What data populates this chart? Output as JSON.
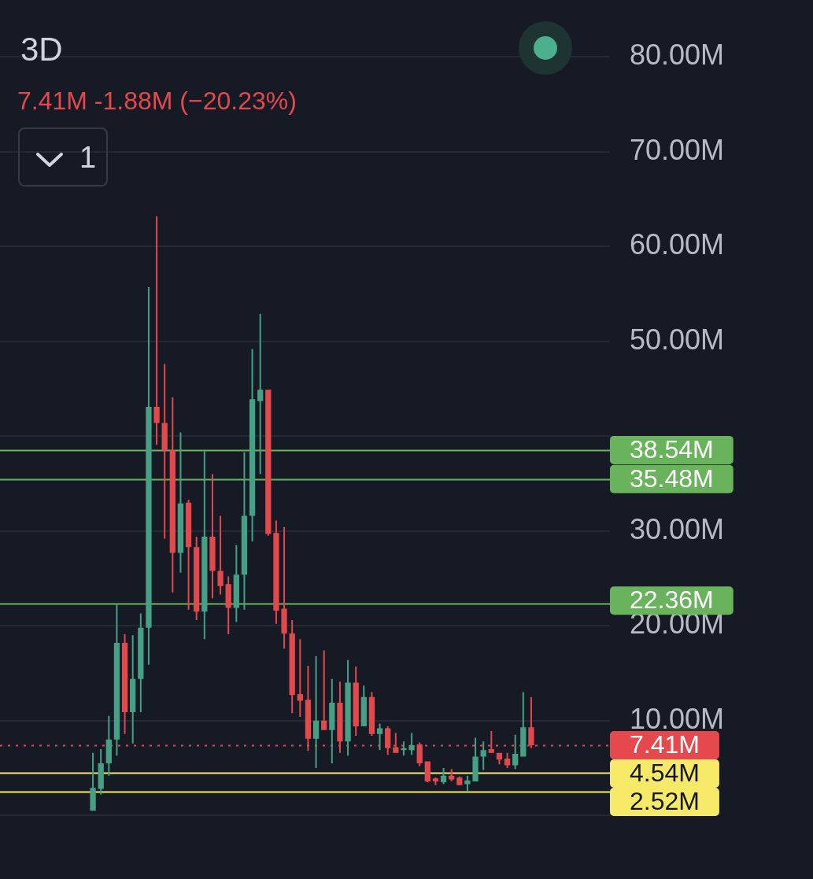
{
  "chart_data": {
    "type": "candlestick",
    "title": "3D",
    "subtitle": "7.41M -1.88M (−20.23%)",
    "annotations": [
      "1"
    ],
    "categories": [
      null,
      null,
      null,
      null,
      null,
      null,
      null,
      null,
      null,
      null,
      null,
      null,
      null,
      null,
      null,
      null,
      null,
      null,
      null,
      null,
      null,
      null,
      null,
      null,
      null,
      null,
      null,
      null,
      null,
      null,
      null,
      null,
      null,
      null,
      null,
      null,
      null,
      null,
      null,
      null,
      null,
      null,
      null,
      null,
      null,
      null,
      null,
      null,
      null,
      null,
      null,
      null,
      null,
      null,
      null,
      null
    ],
    "ohlc": [
      [
        0.5,
        6.6,
        0.5,
        2.9
      ],
      [
        2.8,
        7.0,
        2.2,
        5.5
      ],
      [
        5.5,
        10.5,
        4.2,
        8.0
      ],
      [
        8.0,
        22.3,
        6.3,
        18.2
      ],
      [
        18.2,
        19.1,
        8.6,
        10.9
      ],
      [
        10.9,
        19.0,
        7.6,
        14.4
      ],
      [
        14.4,
        21.3,
        10.9,
        19.8
      ],
      [
        19.8,
        55.7,
        15.9,
        43.1
      ],
      [
        43.1,
        63.2,
        39.1,
        41.4
      ],
      [
        41.4,
        47.6,
        29.2,
        38.5
      ],
      [
        38.5,
        44.1,
        23.5,
        27.7
      ],
      [
        27.7,
        40.4,
        25.6,
        32.9
      ],
      [
        33.0,
        33.3,
        21.7,
        28.3
      ],
      [
        28.3,
        29.4,
        20.6,
        21.5
      ],
      [
        21.5,
        38.4,
        18.6,
        29.4
      ],
      [
        29.4,
        36.0,
        22.9,
        25.8
      ],
      [
        25.8,
        31.6,
        23.3,
        24.2
      ],
      [
        24.4,
        25.2,
        19.1,
        21.9
      ],
      [
        21.9,
        28.5,
        20.4,
        25.4
      ],
      [
        25.4,
        38.3,
        21.7,
        31.6
      ],
      [
        31.6,
        49.2,
        28.9,
        43.9
      ],
      [
        43.7,
        52.9,
        36.0,
        44.9
      ],
      [
        44.9,
        44.9,
        29.5,
        29.7
      ],
      [
        29.8,
        31.1,
        20.2,
        21.6
      ],
      [
        21.8,
        30.4,
        17.6,
        19.2
      ],
      [
        19.2,
        20.6,
        10.8,
        12.7
      ],
      [
        12.8,
        18.6,
        10.4,
        12.1
      ],
      [
        12.2,
        15.8,
        6.8,
        8.1
      ],
      [
        8.1,
        16.8,
        5.0,
        10.0
      ],
      [
        10.0,
        17.4,
        9.0,
        9.0
      ],
      [
        9.0,
        14.4,
        5.5,
        11.9
      ],
      [
        11.9,
        14.1,
        6.6,
        7.8
      ],
      [
        7.8,
        16.4,
        6.3,
        14.0
      ],
      [
        14.0,
        15.7,
        8.4,
        9.4
      ],
      [
        9.4,
        13.7,
        9.4,
        12.5
      ],
      [
        12.5,
        13.0,
        8.4,
        8.6
      ],
      [
        8.6,
        9.7,
        6.9,
        9.2
      ],
      [
        9.2,
        9.4,
        6.4,
        7.1
      ],
      [
        7.2,
        8.7,
        6.6,
        6.6
      ],
      [
        6.9,
        7.8,
        6.3,
        7.1
      ],
      [
        6.9,
        8.7,
        6.4,
        7.4
      ],
      [
        7.5,
        7.7,
        5.2,
        5.5
      ],
      [
        5.7,
        5.7,
        3.5,
        3.6
      ],
      [
        3.9,
        4.0,
        3.2,
        3.6
      ],
      [
        3.5,
        5.0,
        3.3,
        4.2
      ],
      [
        4.2,
        4.9,
        3.6,
        3.8
      ],
      [
        4.0,
        4.1,
        3.2,
        3.2
      ],
      [
        3.3,
        4.2,
        2.5,
        3.7
      ],
      [
        3.6,
        8.2,
        3.6,
        6.2
      ],
      [
        6.2,
        7.8,
        4.8,
        6.9
      ],
      [
        7.0,
        8.9,
        6.6,
        6.6
      ],
      [
        6.6,
        6.6,
        5.4,
        5.9
      ],
      [
        6.0,
        6.6,
        5.0,
        5.3
      ],
      [
        5.3,
        8.5,
        4.9,
        6.5
      ],
      [
        6.2,
        13.0,
        6.2,
        9.3
      ],
      [
        9.3,
        12.5,
        7.1,
        7.41
      ]
    ],
    "colors": [
      "#45a086",
      "#45a086",
      "#45a086",
      "#45a086",
      "#e2494c",
      "#45a086",
      "#45a086",
      "#45a086",
      "#e2494c",
      "#e2494c",
      "#e2494c",
      "#45a086",
      "#e2494c",
      "#e2494c",
      "#45a086",
      "#e2494c",
      "#e2494c",
      "#e2494c",
      "#45a086",
      "#45a086",
      "#45a086",
      "#45a086",
      "#e2494c",
      "#e2494c",
      "#e2494c",
      "#e2494c",
      "#e2494c",
      "#e2494c",
      "#45a086",
      "#e2494c",
      "#45a086",
      "#e2494c",
      "#45a086",
      "#e2494c",
      "#45a086",
      "#e2494c",
      "#45a086",
      "#e2494c",
      "#e2494c",
      "#45a086",
      "#45a086",
      "#e2494c",
      "#e2494c",
      "#e2494c",
      "#45a086",
      "#e2494c",
      "#e2494c",
      "#45a086",
      "#45a086",
      "#45a086",
      "#e2494c",
      "#e2494c",
      "#e2494c",
      "#45a086",
      "#45a086",
      "#e2494c"
    ],
    "ylim": [
      -6.7,
      86.0
    ],
    "yticks": [
      {
        "value": 0,
        "label": null
      },
      {
        "value": 10,
        "label": "10.00M"
      },
      {
        "value": 20,
        "label": "20.00M"
      },
      {
        "value": 30,
        "label": "30.00M"
      },
      {
        "value": 40,
        "label": null
      },
      {
        "value": 50,
        "label": "50.00M"
      },
      {
        "value": 60,
        "label": "60.00M"
      },
      {
        "value": 70,
        "label": "70.00M"
      },
      {
        "value": 80,
        "label": "80.00M"
      }
    ],
    "ref_lines": [
      {
        "axis": "y",
        "value": 38.54,
        "label": "38.54M",
        "color": "#6ab35d"
      },
      {
        "axis": "y",
        "value": 35.48,
        "label": "35.48M",
        "color": "#6ab35d"
      },
      {
        "axis": "y",
        "value": 22.36,
        "label": "22.36M",
        "color": "#6ab35d"
      },
      {
        "axis": "y",
        "value": 7.41,
        "label": "7.41M",
        "color": "#e5484d",
        "line_style": "dotted"
      },
      {
        "axis": "y",
        "value": 4.54,
        "label": "4.54M",
        "color": "#f7e968"
      },
      {
        "axis": "y",
        "value": 2.52,
        "label": "2.52M",
        "color": "#f7e968"
      }
    ],
    "grid": "y",
    "tick_labels": "y"
  }
}
